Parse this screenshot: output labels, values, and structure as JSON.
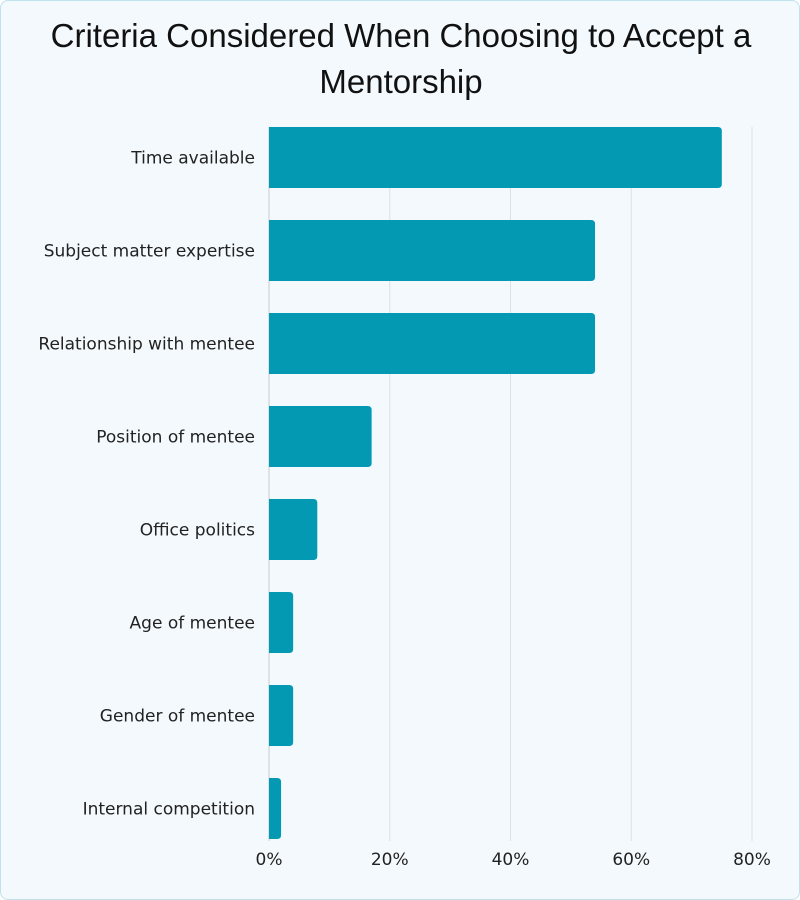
{
  "chart_data": {
    "type": "bar",
    "orientation": "horizontal",
    "title": "Criteria Considered When Choosing to Accept a Mentorship",
    "categories": [
      "Time available",
      "Subject matter expertise",
      "Relationship with mentee",
      "Position of mentee",
      "Office politics",
      "Age of mentee",
      "Gender of mentee",
      "Internal competition"
    ],
    "values": [
      75,
      54,
      54,
      17,
      8,
      4,
      4,
      2
    ],
    "xlim": [
      0,
      80
    ],
    "xticks": [
      "0%",
      "20%",
      "40%",
      "60%",
      "80%"
    ],
    "tick_values": [
      0,
      20,
      40,
      60,
      80
    ],
    "grid": true,
    "bar_color": "#0399b3",
    "xlabel": "",
    "ylabel": ""
  }
}
